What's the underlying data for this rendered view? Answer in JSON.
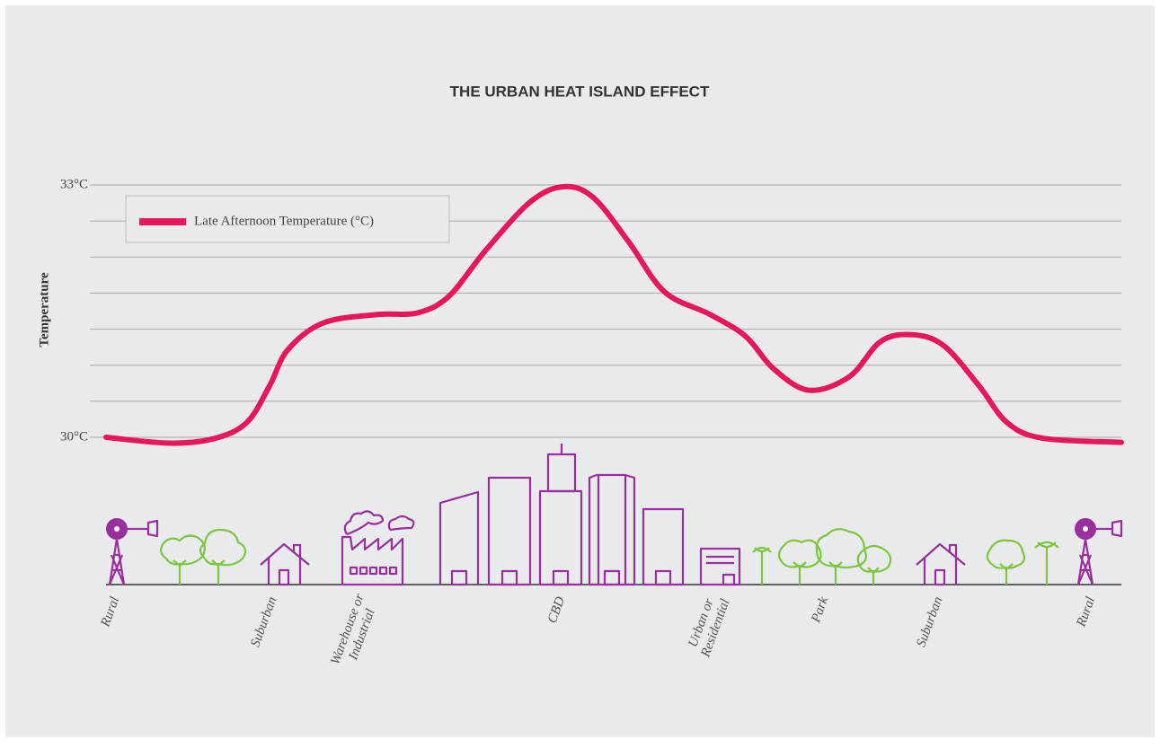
{
  "chart_data": {
    "type": "line",
    "title": "THE URBAN HEAT ISLAND EFFECT",
    "y_label": "Temperature",
    "x": [
      0,
      6.4,
      10.8,
      13.9,
      16.1,
      17.9,
      21.4,
      26.7,
      30.7,
      33.8,
      37.3,
      41.8,
      45.1,
      48.0,
      51.5,
      55.0,
      59.5,
      63.0,
      65.7,
      69.2,
      73.2,
      76.3,
      79.4,
      82.5,
      86.0,
      88.7,
      92.2,
      100
    ],
    "series": [
      {
        "name": "Late Afternoon Temperature (°C)",
        "color": "#e8175d",
        "values": [
          30.0,
          29.93,
          29.99,
          30.18,
          30.61,
          31.04,
          31.36,
          31.46,
          31.48,
          31.68,
          32.21,
          32.8,
          32.98,
          32.85,
          32.32,
          31.73,
          31.46,
          31.2,
          30.82,
          30.56,
          30.72,
          31.14,
          31.22,
          31.09,
          30.61,
          30.18,
          29.99,
          29.94
        ]
      }
    ],
    "xlim": [
      0,
      100
    ],
    "xticks": [
      {
        "value": 1,
        "label": "Rural"
      },
      {
        "value": 16.5,
        "label": "Suburban"
      },
      {
        "value": 25.8,
        "label": "Warehouse or\nIndustrial"
      },
      {
        "value": 44.9,
        "label": "CBD"
      },
      {
        "value": 60.4,
        "label": "Urban or\nResidential"
      },
      {
        "value": 70.8,
        "label": "Park"
      },
      {
        "value": 82,
        "label": "Suburban"
      },
      {
        "value": 97.1,
        "label": "Rural"
      }
    ],
    "ylim": [
      30,
      33
    ],
    "yticks": [
      {
        "value": 30,
        "label": "30°C"
      },
      {
        "value": 33,
        "label": "33°C"
      }
    ],
    "minor_yticks": [
      30.4286,
      30.8571,
      31.2857,
      31.7143,
      32.1429,
      32.5714
    ],
    "grid": true,
    "legend": "top-left"
  }
}
